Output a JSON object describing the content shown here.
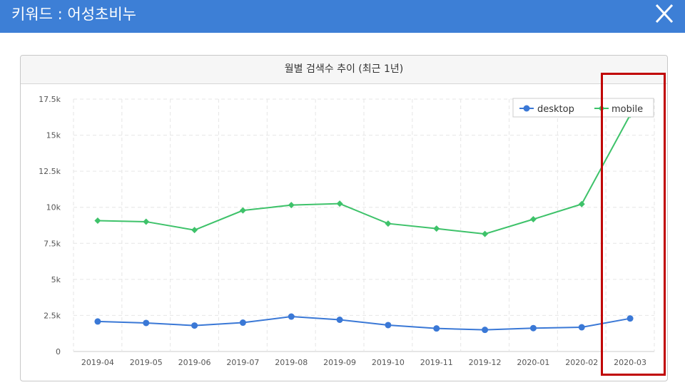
{
  "header": {
    "title": "키워드 : 어성초비누"
  },
  "panel": {
    "title": "월별 검색수 추이 (최근 1년)"
  },
  "colors": {
    "header_bg": "#3d7fd6",
    "desktop": "#3a78d6",
    "mobile": "#3ec26a",
    "highlight": "#c00000"
  },
  "icons": {
    "close": "close-icon"
  },
  "chart_data": {
    "type": "line",
    "title": "월별 검색수 추이 (최근 1년)",
    "categories": [
      "2019-04",
      "2019-05",
      "2019-06",
      "2019-07",
      "2019-08",
      "2019-09",
      "2019-10",
      "2019-11",
      "2019-12",
      "2020-01",
      "2020-02",
      "2020-03"
    ],
    "series": [
      {
        "name": "desktop",
        "values": [
          2080,
          1980,
          1800,
          2000,
          2420,
          2200,
          1830,
          1600,
          1500,
          1620,
          1680,
          2290
        ]
      },
      {
        "name": "mobile",
        "values": [
          9070,
          9000,
          8420,
          9780,
          10150,
          10250,
          8870,
          8520,
          8150,
          9170,
          10220,
          16400
        ]
      }
    ],
    "y_ticks": [
      "0",
      "2.5k",
      "5k",
      "7.5k",
      "10k",
      "12.5k",
      "15k",
      "17.5k"
    ],
    "ylim": [
      0,
      17500
    ],
    "grid": true,
    "legend_position": "top-right",
    "highlighted_category": "2020-03"
  }
}
